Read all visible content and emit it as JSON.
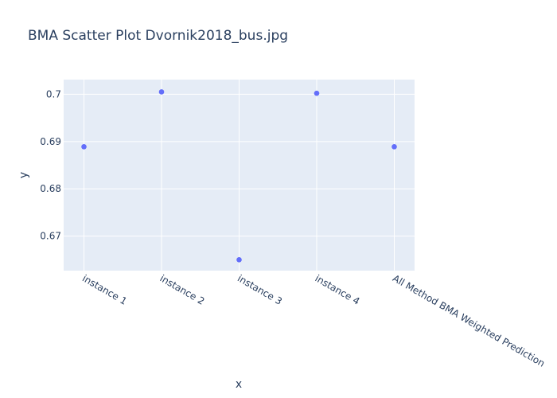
{
  "chart_data": {
    "type": "scatter",
    "title": "BMA Scatter Plot Dvornik2018_bus.jpg",
    "xlabel": "x",
    "ylabel": "y",
    "categories": [
      "instance 1",
      "instance 2",
      "instance 3",
      "instance 4",
      "All Method BMA Weighted Prediction"
    ],
    "values": [
      0.6889,
      0.7005,
      0.665,
      0.7002,
      0.6889
    ],
    "yticks": [
      0.67,
      0.68,
      0.69,
      0.7
    ],
    "ytick_labels": [
      "0.67",
      "0.68",
      "0.69",
      "0.7"
    ],
    "ylim": [
      0.6627,
      0.7031
    ],
    "grid": true,
    "marker_color": "#636efa",
    "plot_bg": "#e5ecf6",
    "grid_color": "#ffffff",
    "text_color": "#2a3f5f"
  }
}
